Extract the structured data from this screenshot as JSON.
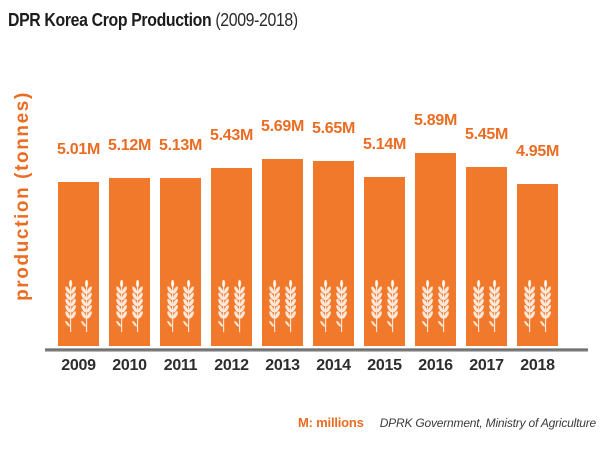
{
  "title": {
    "main": "DPR Korea Crop Production",
    "period": "(2009-2018)"
  },
  "y_axis_label": "production (tonnes)",
  "footer": {
    "unit_note": "M: millions",
    "source": "DPRK Government, Ministry of Agriculture"
  },
  "colors": {
    "bar_orange": "#F0792C",
    "text_orange": "#EB6C23",
    "title_dark": "#1c1c1c",
    "year_dark": "#2d2d2d",
    "source_gray": "#3b3b3b",
    "axis_gray": "#5d5d5d"
  },
  "icons": {
    "bar_icon": "wheat-icon"
  },
  "chart_data": {
    "type": "bar",
    "title": "DPR Korea Crop Production (2009-2018)",
    "categories": [
      "2009",
      "2010",
      "2011",
      "2012",
      "2013",
      "2014",
      "2015",
      "2016",
      "2017",
      "2018"
    ],
    "values": [
      5.01,
      5.12,
      5.13,
      5.43,
      5.69,
      5.65,
      5.14,
      5.89,
      5.45,
      4.95
    ],
    "labels": [
      "5.01M",
      "5.12M",
      "5.13M",
      "5.43M",
      "5.69M",
      "5.65M",
      "5.14M",
      "5.89M",
      "5.45M",
      "4.95M"
    ],
    "unit": "millions of tonnes",
    "xlabel": "",
    "ylabel": "production (tonnes)",
    "baseline": 0,
    "grid": false,
    "legend": false,
    "bar_color": "#F0792C",
    "value_label_color": "#EB6C23"
  }
}
